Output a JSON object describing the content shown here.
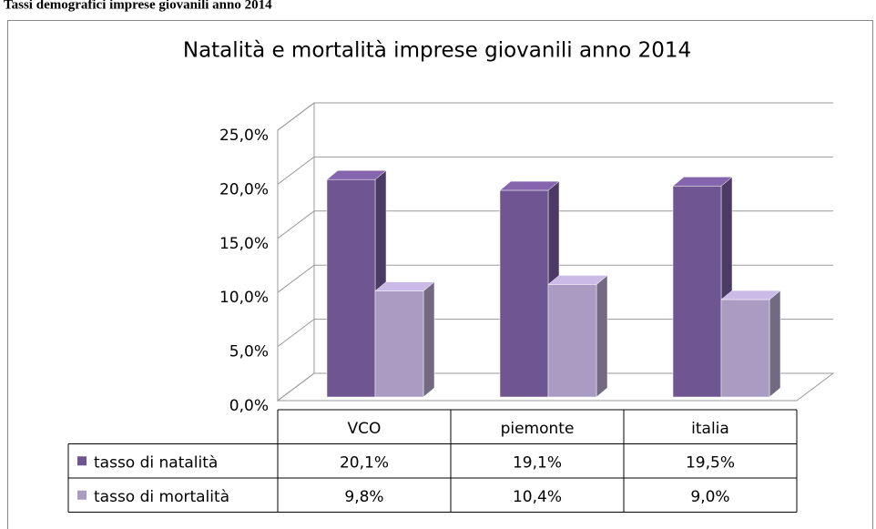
{
  "heading": "Tassi demografici imprese giovanili anno 2014",
  "chart_data": {
    "type": "bar3d",
    "title": "Natalità e mortalità imprese giovanili anno 2014",
    "categories": [
      "VCO",
      "piemonte",
      "italia"
    ],
    "series": [
      {
        "name": "tasso di natalità",
        "color": "#6f5591",
        "values": [
          20.1,
          19.1,
          19.5
        ],
        "value_labels": [
          "20,1%",
          "19,1%",
          "19,5%"
        ]
      },
      {
        "name": "tasso di mortalità",
        "color": "#a99bc1",
        "values": [
          9.8,
          10.4,
          9.0
        ],
        "value_labels": [
          "9,8%",
          "10,4%",
          "9,0%"
        ]
      }
    ],
    "ylim": [
      0,
      25
    ],
    "yticks": [
      {
        "value": 0,
        "label": "0,0%"
      },
      {
        "value": 5,
        "label": "5,0%"
      },
      {
        "value": 10,
        "label": "10,0%"
      },
      {
        "value": 15,
        "label": "15,0%"
      },
      {
        "value": 20,
        "label": "20,0%"
      },
      {
        "value": 25,
        "label": "25,0%"
      }
    ],
    "grid": true,
    "data_table": true
  }
}
